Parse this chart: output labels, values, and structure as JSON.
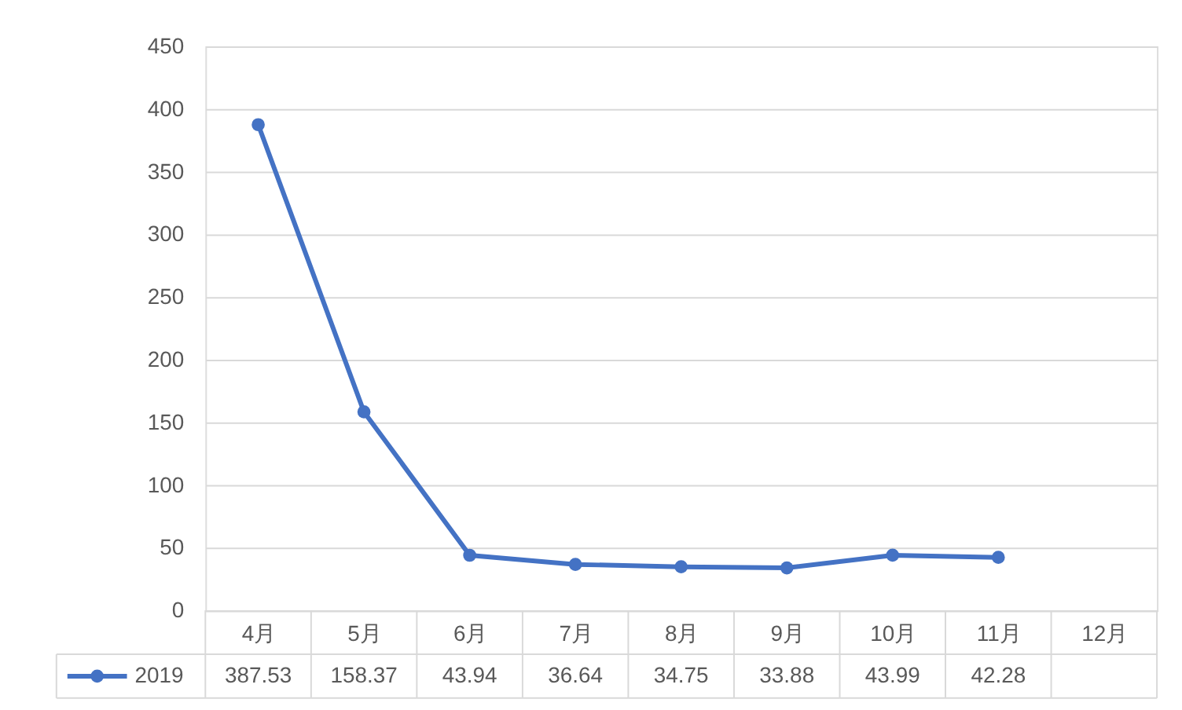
{
  "chart_data": {
    "type": "line",
    "categories": [
      "4月",
      "5月",
      "6月",
      "7月",
      "8月",
      "9月",
      "10月",
      "11月",
      "12月"
    ],
    "series": [
      {
        "name": "2019",
        "color": "#4472c4",
        "values": [
          387.53,
          158.37,
          43.94,
          36.64,
          34.75,
          33.88,
          43.99,
          42.28,
          null
        ]
      }
    ],
    "ylim": [
      0,
      450
    ],
    "yticks": [
      0,
      50,
      100,
      150,
      200,
      250,
      300,
      350,
      400,
      450
    ],
    "grid": "y",
    "marker": "circle",
    "line_style": "solid",
    "legend": "bottom",
    "data_labels": true
  }
}
